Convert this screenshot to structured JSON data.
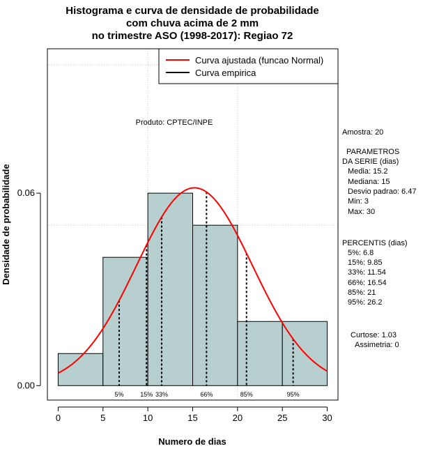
{
  "chart_data": {
    "type": "bar",
    "title_lines": [
      "Histograma e curva de densidade de probabilidade",
      "com chuva acima de 2 mm",
      "no trimestre ASO (1998-2017): Regiao 72"
    ],
    "xlabel": "Numero de dias",
    "ylabel": "Densidade de probabilidade",
    "xlim": [
      -1.2,
      31.2
    ],
    "ylim": [
      -0.0045,
      0.105
    ],
    "xticks": [
      "0",
      "5",
      "10",
      "15",
      "20",
      "25",
      "30"
    ],
    "yticks": [
      "0.00",
      "0.06"
    ],
    "bins": [
      {
        "from": 0,
        "to": 5,
        "density": 0.01
      },
      {
        "from": 5,
        "to": 10,
        "density": 0.04
      },
      {
        "from": 10,
        "to": 15,
        "density": 0.06
      },
      {
        "from": 15,
        "to": 20,
        "density": 0.05
      },
      {
        "from": 20,
        "to": 25,
        "density": 0.02
      },
      {
        "from": 25,
        "to": 30,
        "density": 0.02
      }
    ],
    "normal_curve": {
      "mean": 15.2,
      "sd": 6.47,
      "from": 0,
      "to": 30
    },
    "percentiles": [
      {
        "label": "5%",
        "value": 6.8
      },
      {
        "label": "15%",
        "value": 9.85
      },
      {
        "label": "33%",
        "value": 11.54
      },
      {
        "label": "66%",
        "value": 16.54
      },
      {
        "label": "85%",
        "value": 21
      },
      {
        "label": "95%",
        "value": 26.2
      }
    ],
    "legend": [
      {
        "label": "Curva ajustada (funcao Normal)",
        "color": "#ff0000"
      },
      {
        "label": "Curva empirica",
        "color": "#000000"
      }
    ],
    "product_label": "Produto: CPTEC/INPE",
    "stats_panel": {
      "amostra": "Amostra: 20",
      "params_title_1": "PARAMETROS",
      "params_title_2": "DA SERIE (dias)",
      "params": [
        "Media: 15.2",
        "Mediana: 15",
        "Desvio padrao: 6.47",
        "Min: 3",
        "Max: 30"
      ],
      "percentis_title": "PERCENTIS (dias)",
      "percentis": [
        "5%: 6.8",
        "15%: 9.85",
        "33%: 11.54",
        "66%: 16.54",
        "85%: 21",
        "95%: 26.2"
      ],
      "curtose": "Curtose: 1.03",
      "assimetria": "Assimetria: 0"
    },
    "colors": {
      "bar": "#b7cfcf",
      "curve": "#ff0000",
      "grid": "#c8c8c8"
    }
  }
}
